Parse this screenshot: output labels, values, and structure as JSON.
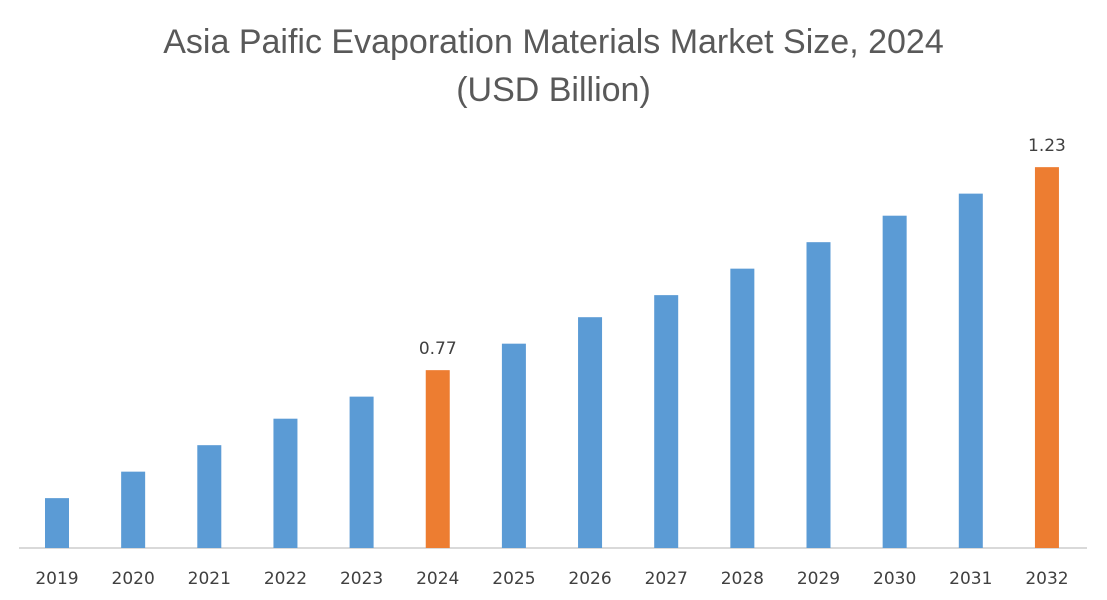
{
  "chart_data": {
    "type": "bar",
    "title": "Asia Paific Evaporation Materials Market Size, 2024",
    "subtitle": "(USD Billion)",
    "xlabel": "",
    "ylabel": "",
    "categories": [
      "2019",
      "2020",
      "2021",
      "2022",
      "2023",
      "2024",
      "2025",
      "2026",
      "2027",
      "2028",
      "2029",
      "2030",
      "2031",
      "2032"
    ],
    "values": [
      0.48,
      0.54,
      0.6,
      0.66,
      0.71,
      0.77,
      0.83,
      0.89,
      0.94,
      1.0,
      1.06,
      1.12,
      1.17,
      1.23
    ],
    "data_labels": {
      "2024": "0.77",
      "2032": "1.23"
    },
    "highlighted": [
      "2024",
      "2032"
    ],
    "ylim": [
      0.367,
      1.3
    ],
    "grid": false,
    "legend": "none",
    "colors": {
      "bar": "#5b9bd5",
      "highlight": "#ed7d31",
      "axis": "#d9d9d9",
      "text": "#404040"
    }
  }
}
